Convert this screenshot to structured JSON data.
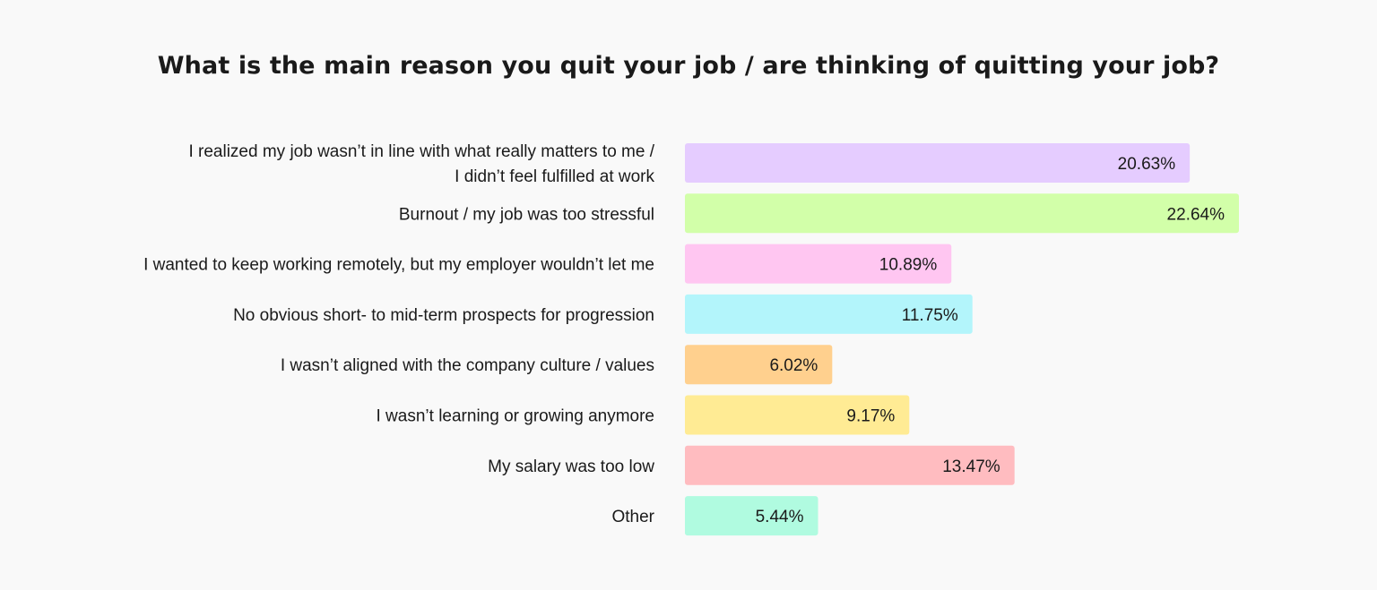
{
  "chart_data": {
    "type": "bar",
    "orientation": "horizontal",
    "title": "What is the main reason you quit your job / are thinking of quitting your job?",
    "categories": [
      [
        "I realized my job wasn’t in line with what really matters to me /",
        "I didn’t feel fulfilled at work"
      ],
      [
        "Burnout / my job was too stressful"
      ],
      [
        "I wanted to keep working remotely, but my employer wouldn’t let me"
      ],
      [
        "No obvious short- to mid-term prospects for progression"
      ],
      [
        "I wasn’t aligned with the company culture / values"
      ],
      [
        "I wasn’t learning or growing anymore"
      ],
      [
        "My salary was too low"
      ],
      [
        "Other"
      ]
    ],
    "values": [
      20.63,
      22.64,
      10.89,
      11.75,
      6.02,
      9.17,
      13.47,
      5.44
    ],
    "value_labels": [
      "20.63%",
      "22.64%",
      "10.89%",
      "11.75%",
      "6.02%",
      "9.17%",
      "13.47%",
      "5.44%"
    ],
    "colors": [
      "#e5ccff",
      "#d2ffa9",
      "#ffc6f1",
      "#b3f5fb",
      "#ffd08e",
      "#ffeb94",
      "#ffbcc0",
      "#b0fbe0"
    ],
    "xlim": [
      0,
      22.64
    ],
    "grid": false,
    "legend": "none"
  }
}
